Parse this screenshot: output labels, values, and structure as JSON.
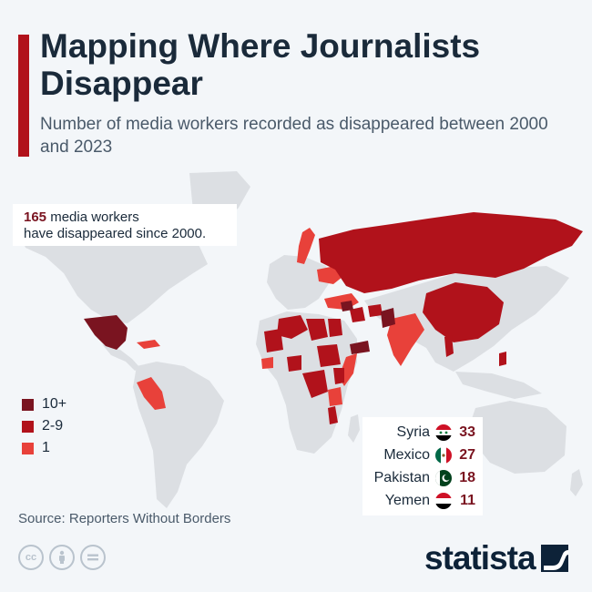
{
  "header": {
    "title": "Mapping Where Journalists Disappear",
    "subtitle": "Number of media workers recorded as disappeared between 2000 and 2023"
  },
  "callout": {
    "count": "165",
    "text_line1": "media workers",
    "text_line2": "have disappeared since 2000."
  },
  "legend": [
    {
      "label": "10+",
      "color": "#7a1420"
    },
    {
      "label": "2-9",
      "color": "#b1121b"
    },
    {
      "label": "1",
      "color": "#e8413a"
    }
  ],
  "ranking": [
    {
      "country": "Syria",
      "value": "33",
      "flag_icon": "syria-flag-icon"
    },
    {
      "country": "Mexico",
      "value": "27",
      "flag_icon": "mexico-flag-icon"
    },
    {
      "country": "Pakistan",
      "value": "18",
      "flag_icon": "pakistan-flag-icon"
    },
    {
      "country": "Yemen",
      "value": "11",
      "flag_icon": "yemen-flag-icon"
    }
  ],
  "source": "Source: Reporters Without Borders",
  "brand": "statista",
  "colors": {
    "accent": "#b1121b",
    "tier_high": "#7a1420",
    "tier_mid": "#b1121b",
    "tier_low": "#e8413a",
    "land": "#dcdfe3",
    "background": "#f3f6f9"
  }
}
